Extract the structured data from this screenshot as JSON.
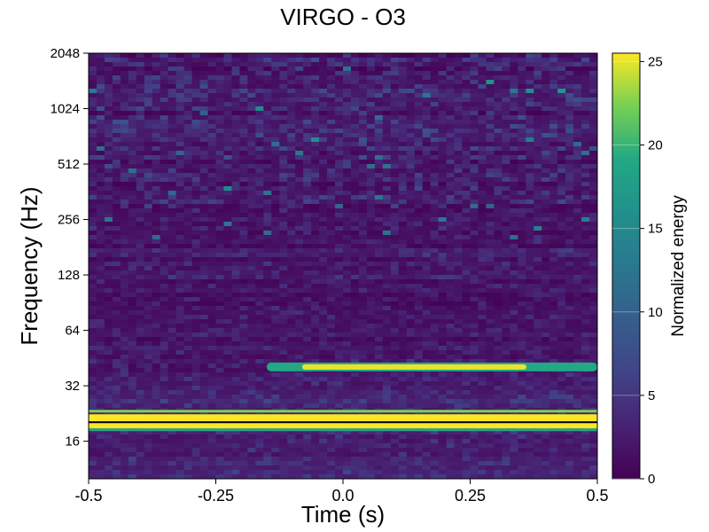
{
  "chart_data": {
    "type": "heatmap",
    "title": "VIRGO - O3",
    "xlabel": "Time (s)",
    "ylabel": "Frequency (Hz)",
    "xlim": [
      -0.5,
      0.5
    ],
    "ylim": [
      10,
      2048
    ],
    "yscale": "log2",
    "x_ticks": [
      {
        "value": -0.5,
        "label": "-0.5"
      },
      {
        "value": -0.25,
        "label": "-0.25"
      },
      {
        "value": 0.0,
        "label": "0.0"
      },
      {
        "value": 0.25,
        "label": "0.25"
      },
      {
        "value": 0.5,
        "label": "0.5"
      }
    ],
    "y_ticks": [
      {
        "value": 16,
        "label": "16"
      },
      {
        "value": 32,
        "label": "32"
      },
      {
        "value": 64,
        "label": "64"
      },
      {
        "value": 128,
        "label": "128"
      },
      {
        "value": 256,
        "label": "256"
      },
      {
        "value": 512,
        "label": "512"
      },
      {
        "value": 1024,
        "label": "1024"
      },
      {
        "value": 2048,
        "label": "2048"
      }
    ],
    "colorbar": {
      "label": "Normalized energy",
      "colormap": "viridis",
      "range": [
        0,
        25.5
      ],
      "ticks": [
        {
          "value": 0,
          "label": "0"
        },
        {
          "value": 5,
          "label": "5"
        },
        {
          "value": 10,
          "label": "10"
        },
        {
          "value": 15,
          "label": "15"
        },
        {
          "value": 20,
          "label": "20"
        },
        {
          "value": 25,
          "label": "25"
        }
      ]
    },
    "bright_features": [
      {
        "name": "",
        "freq_hz": 20.5,
        "t_start": -0.5,
        "t_end": 0.5,
        "energy": 25.5
      },
      {
        "name": "",
        "freq_hz": 40.5,
        "t_start": -0.15,
        "t_end": 0.5,
        "energy": 25
      }
    ]
  },
  "colors": {
    "viridis_low": "#440154",
    "viridis_high": "#fde725",
    "band_divider": "#000000"
  }
}
